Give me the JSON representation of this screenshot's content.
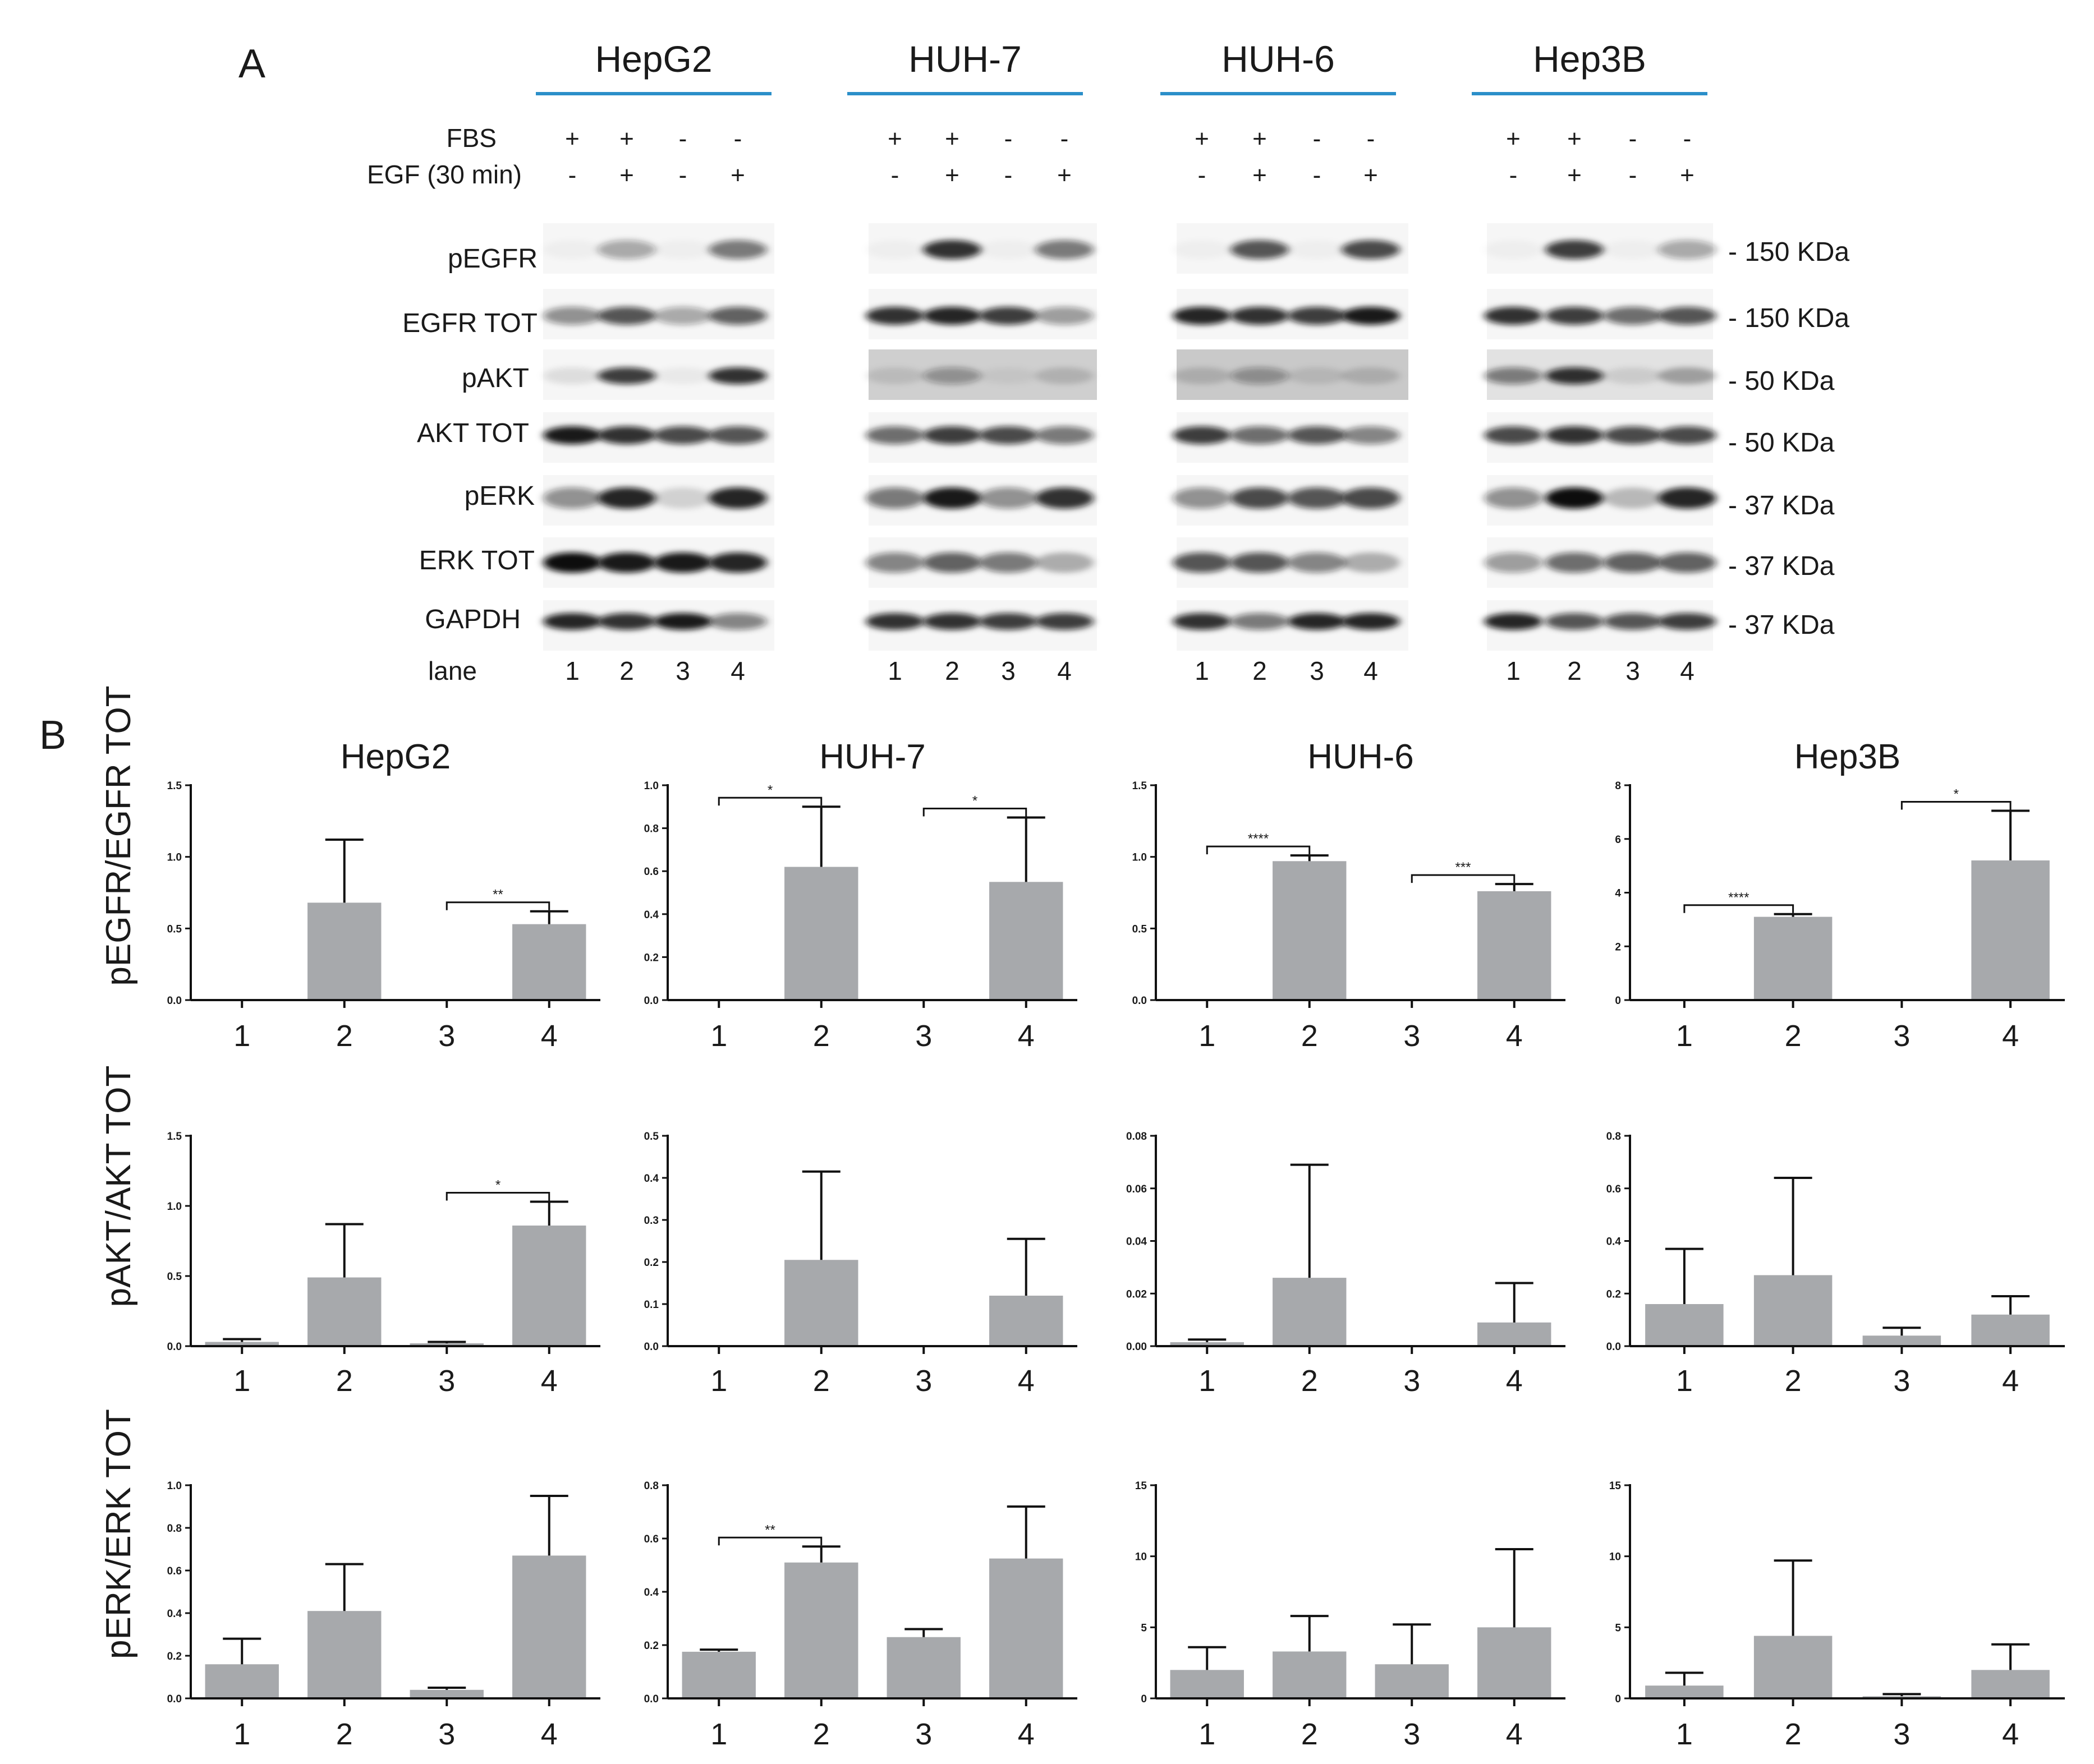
{
  "figure": {
    "panel_a_label": "A",
    "panel_b_label": "B",
    "cell_lines": [
      "HepG2",
      "HUH-7",
      "HUH-6",
      "Hep3B"
    ],
    "line_color": "#2b8fc9",
    "bar_color": "#a7a9ac"
  },
  "blot": {
    "conditions": [
      {
        "label": "FBS",
        "signs": [
          "+",
          "+",
          "-",
          "-"
        ]
      },
      {
        "label": "EGF (30 min)",
        "signs": [
          "-",
          "+",
          "-",
          "+"
        ]
      }
    ],
    "rows": [
      {
        "label": "pEGFR",
        "kda": "- 150 KDa"
      },
      {
        "label": "EGFR TOT",
        "kda": "- 150 KDa"
      },
      {
        "label": "pAKT",
        "kda": "- 50 KDa"
      },
      {
        "label": "AKT TOT",
        "kda": "- 50 KDa"
      },
      {
        "label": "pERK",
        "kda": "- 37 KDa"
      },
      {
        "label": "ERK TOT",
        "kda": "- 37 KDa"
      },
      {
        "label": "GAPDH",
        "kda": "- 37 KDa"
      }
    ],
    "lane_label": "lane",
    "lanes": [
      "1",
      "2",
      "3",
      "4"
    ],
    "band_intensity": [
      [
        [
          0.02,
          0.35,
          0.02,
          0.55
        ],
        [
          0.02,
          0.85,
          0.02,
          0.55
        ],
        [
          0.02,
          0.7,
          0.02,
          0.75
        ],
        [
          0.02,
          0.8,
          0.02,
          0.35
        ]
      ],
      [
        [
          0.45,
          0.7,
          0.35,
          0.65
        ],
        [
          0.85,
          0.9,
          0.8,
          0.4
        ],
        [
          0.9,
          0.85,
          0.8,
          0.95
        ],
        [
          0.85,
          0.8,
          0.6,
          0.7
        ]
      ],
      [
        [
          0.1,
          0.8,
          0.05,
          0.85
        ],
        [
          0.1,
          0.35,
          0.05,
          0.15
        ],
        [
          0.15,
          0.35,
          0.1,
          0.15
        ],
        [
          0.5,
          0.85,
          0.1,
          0.3
        ]
      ],
      [
        [
          0.95,
          0.85,
          0.75,
          0.7
        ],
        [
          0.6,
          0.8,
          0.75,
          0.55
        ],
        [
          0.8,
          0.6,
          0.7,
          0.5
        ],
        [
          0.75,
          0.85,
          0.75,
          0.75
        ]
      ],
      [
        [
          0.45,
          0.9,
          0.15,
          0.9
        ],
        [
          0.55,
          0.95,
          0.45,
          0.85
        ],
        [
          0.45,
          0.75,
          0.7,
          0.75
        ],
        [
          0.45,
          1.0,
          0.25,
          0.9
        ]
      ],
      [
        [
          1.0,
          0.95,
          0.95,
          0.9
        ],
        [
          0.5,
          0.65,
          0.55,
          0.3
        ],
        [
          0.7,
          0.7,
          0.5,
          0.3
        ],
        [
          0.4,
          0.6,
          0.65,
          0.65
        ]
      ],
      [
        [
          0.9,
          0.85,
          0.95,
          0.5
        ],
        [
          0.85,
          0.85,
          0.8,
          0.8
        ],
        [
          0.85,
          0.55,
          0.9,
          0.9
        ],
        [
          0.9,
          0.7,
          0.7,
          0.8
        ]
      ]
    ]
  },
  "bar_charts": {
    "row_labels": [
      "pEGFR/EGFR TOT",
      "pAKT/AKT TOT",
      "pERK/ERK TOT"
    ],
    "categories": [
      "1",
      "2",
      "3",
      "4"
    ]
  },
  "chart_data": [
    {
      "type": "bar",
      "title": "HepG2",
      "ylabel": "pEGFR/EGFR TOT",
      "categories": [
        "1",
        "2",
        "3",
        "4"
      ],
      "values": [
        0,
        0.68,
        0,
        0.53
      ],
      "errors": [
        0,
        0.44,
        0,
        0.09
      ],
      "ylim": [
        0,
        1.5
      ],
      "yticks": [
        "0.0",
        "0.5",
        "1.0",
        "1.5"
      ],
      "significance": [
        {
          "from": 3,
          "to": 4,
          "label": "**"
        }
      ]
    },
    {
      "type": "bar",
      "title": "HUH-7",
      "ylabel": "pEGFR/EGFR TOT",
      "categories": [
        "1",
        "2",
        "3",
        "4"
      ],
      "values": [
        0,
        0.62,
        0,
        0.55
      ],
      "errors": [
        0,
        0.28,
        0,
        0.3
      ],
      "ylim": [
        0,
        1.0
      ],
      "yticks": [
        "0.0",
        "0.2",
        "0.4",
        "0.6",
        "0.8",
        "1.0"
      ],
      "significance": [
        {
          "from": 1,
          "to": 2,
          "label": "*"
        },
        {
          "from": 3,
          "to": 4,
          "label": "*"
        }
      ]
    },
    {
      "type": "bar",
      "title": "HUH-6",
      "ylabel": "pEGFR/EGFR TOT",
      "categories": [
        "1",
        "2",
        "3",
        "4"
      ],
      "values": [
        0,
        0.97,
        0,
        0.76
      ],
      "errors": [
        0,
        0.04,
        0,
        0.05
      ],
      "ylim": [
        0,
        1.5
      ],
      "yticks": [
        "0.0",
        "0.5",
        "1.0",
        "1.5"
      ],
      "significance": [
        {
          "from": 1,
          "to": 2,
          "label": "****"
        },
        {
          "from": 3,
          "to": 4,
          "label": "***"
        }
      ]
    },
    {
      "type": "bar",
      "title": "Hep3B",
      "ylabel": "pEGFR/EGFR TOT",
      "categories": [
        "1",
        "2",
        "3",
        "4"
      ],
      "values": [
        0,
        3.1,
        0,
        5.2
      ],
      "errors": [
        0,
        0.1,
        0,
        1.85
      ],
      "ylim": [
        0,
        8
      ],
      "yticks": [
        "0",
        "2",
        "4",
        "6",
        "8"
      ],
      "significance": [
        {
          "from": 1,
          "to": 2,
          "label": "****"
        },
        {
          "from": 3,
          "to": 4,
          "label": "*"
        }
      ]
    },
    {
      "type": "bar",
      "title": "",
      "ylabel": "pAKT/AKT TOT",
      "categories": [
        "1",
        "2",
        "3",
        "4"
      ],
      "values": [
        0.03,
        0.49,
        0.02,
        0.86
      ],
      "errors": [
        0.02,
        0.38,
        0.01,
        0.17
      ],
      "ylim": [
        0,
        1.5
      ],
      "yticks": [
        "0.0",
        "0.5",
        "1.0",
        "1.5"
      ],
      "significance": [
        {
          "from": 3,
          "to": 4,
          "label": "*"
        }
      ]
    },
    {
      "type": "bar",
      "title": "",
      "ylabel": "pAKT/AKT TOT",
      "categories": [
        "1",
        "2",
        "3",
        "4"
      ],
      "values": [
        0,
        0.205,
        0,
        0.12
      ],
      "errors": [
        0,
        0.21,
        0,
        0.135
      ],
      "ylim": [
        0,
        0.5
      ],
      "yticks": [
        "0.0",
        "0.1",
        "0.2",
        "0.3",
        "0.4",
        "0.5"
      ],
      "significance": []
    },
    {
      "type": "bar",
      "title": "",
      "ylabel": "pAKT/AKT TOT",
      "categories": [
        "1",
        "2",
        "3",
        "4"
      ],
      "values": [
        0.0015,
        0.026,
        0,
        0.009
      ],
      "errors": [
        0.001,
        0.043,
        0,
        0.015
      ],
      "ylim": [
        0,
        0.08
      ],
      "yticks": [
        "0.00",
        "0.02",
        "0.04",
        "0.06",
        "0.08"
      ],
      "significance": []
    },
    {
      "type": "bar",
      "title": "",
      "ylabel": "pAKT/AKT TOT",
      "categories": [
        "1",
        "2",
        "3",
        "4"
      ],
      "values": [
        0.16,
        0.27,
        0.04,
        0.12
      ],
      "errors": [
        0.21,
        0.37,
        0.03,
        0.07
      ],
      "ylim": [
        0,
        0.8
      ],
      "yticks": [
        "0.0",
        "0.2",
        "0.4",
        "0.6",
        "0.8"
      ],
      "significance": []
    },
    {
      "type": "bar",
      "title": "",
      "ylabel": "pERK/ERK TOT",
      "categories": [
        "1",
        "2",
        "3",
        "4"
      ],
      "values": [
        0.16,
        0.41,
        0.04,
        0.67
      ],
      "errors": [
        0.12,
        0.22,
        0.01,
        0.28
      ],
      "ylim": [
        0,
        1.0
      ],
      "yticks": [
        "0.0",
        "0.2",
        "0.4",
        "0.6",
        "0.8",
        "1.0"
      ],
      "significance": []
    },
    {
      "type": "bar",
      "title": "",
      "ylabel": "pERK/ERK TOT",
      "categories": [
        "1",
        "2",
        "3",
        "4"
      ],
      "values": [
        0.175,
        0.51,
        0.23,
        0.525
      ],
      "errors": [
        0.008,
        0.06,
        0.03,
        0.195
      ],
      "ylim": [
        0,
        0.8
      ],
      "yticks": [
        "0.0",
        "0.2",
        "0.4",
        "0.6",
        "0.8"
      ],
      "significance": [
        {
          "from": 1,
          "to": 2,
          "label": "**"
        }
      ]
    },
    {
      "type": "bar",
      "title": "",
      "ylabel": "pERK/ERK TOT",
      "categories": [
        "1",
        "2",
        "3",
        "4"
      ],
      "values": [
        2.0,
        3.3,
        2.4,
        5.0
      ],
      "errors": [
        1.6,
        2.5,
        2.8,
        5.5
      ],
      "ylim": [
        0,
        15
      ],
      "yticks": [
        "0",
        "5",
        "10",
        "15"
      ],
      "significance": []
    },
    {
      "type": "bar",
      "title": "",
      "ylabel": "pERK/ERK TOT",
      "categories": [
        "1",
        "2",
        "3",
        "4"
      ],
      "values": [
        0.9,
        4.4,
        0.15,
        2.0
      ],
      "errors": [
        0.9,
        5.3,
        0.15,
        1.8
      ],
      "ylim": [
        0,
        15
      ],
      "yticks": [
        "0",
        "5",
        "10",
        "15"
      ],
      "significance": []
    }
  ]
}
